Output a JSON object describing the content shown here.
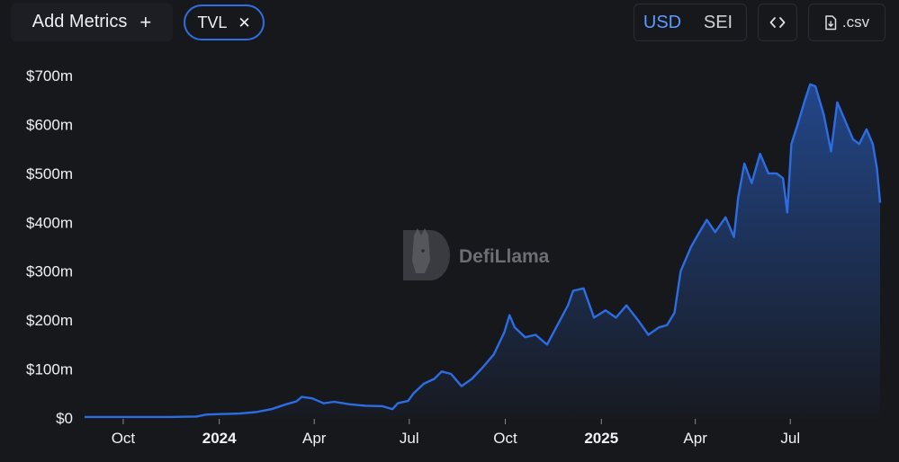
{
  "header": {
    "add_metrics_label": "Add Metrics",
    "add_icon": "plus-icon",
    "metric_chip_label": "TVL",
    "remove_icon": "close-icon",
    "currency_options": [
      "USD",
      "SEI"
    ],
    "currency_selected": "USD",
    "embed_icon": "code-brackets-icon",
    "csv_icon": "download-file-icon",
    "csv_label": ".csv"
  },
  "watermark": {
    "text": "DefiLlama",
    "icon": "llama-logo-icon"
  },
  "colors": {
    "background": "#17181c",
    "line": "#2c6de3",
    "accent": "#5b9bff"
  },
  "chart_data": {
    "type": "area",
    "series": [
      {
        "points": [
          [
            "2023-08-25",
            2
          ],
          [
            "2023-09-15",
            2
          ],
          [
            "2023-10-15",
            2
          ],
          [
            "2023-11-15",
            2
          ],
          [
            "2023-12-10",
            3
          ],
          [
            "2023-12-20",
            7
          ],
          [
            "2024-01-05",
            8
          ],
          [
            "2024-01-20",
            9
          ],
          [
            "2024-02-05",
            12
          ],
          [
            "2024-02-20",
            18
          ],
          [
            "2024-03-05",
            28
          ],
          [
            "2024-03-15",
            34
          ],
          [
            "2024-03-20",
            43
          ],
          [
            "2024-03-30",
            40
          ],
          [
            "2024-04-10",
            30
          ],
          [
            "2024-04-20",
            33
          ],
          [
            "2024-05-05",
            28
          ],
          [
            "2024-05-20",
            25
          ],
          [
            "2024-06-05",
            24
          ],
          [
            "2024-06-15",
            18
          ],
          [
            "2024-06-20",
            30
          ],
          [
            "2024-06-30",
            35
          ],
          [
            "2024-07-05",
            50
          ],
          [
            "2024-07-15",
            70
          ],
          [
            "2024-07-25",
            80
          ],
          [
            "2024-08-01",
            95
          ],
          [
            "2024-08-10",
            90
          ],
          [
            "2024-08-20",
            65
          ],
          [
            "2024-08-30",
            80
          ],
          [
            "2024-09-10",
            105
          ],
          [
            "2024-09-20",
            130
          ],
          [
            "2024-09-30",
            175
          ],
          [
            "2024-10-05",
            210
          ],
          [
            "2024-10-10",
            185
          ],
          [
            "2024-10-20",
            165
          ],
          [
            "2024-10-30",
            170
          ],
          [
            "2024-11-10",
            150
          ],
          [
            "2024-11-20",
            190
          ],
          [
            "2024-11-30",
            230
          ],
          [
            "2024-12-05",
            260
          ],
          [
            "2024-12-15",
            265
          ],
          [
            "2024-12-25",
            205
          ],
          [
            "2025-01-05",
            220
          ],
          [
            "2025-01-15",
            205
          ],
          [
            "2025-01-25",
            230
          ],
          [
            "2025-02-05",
            200
          ],
          [
            "2025-02-15",
            170
          ],
          [
            "2025-02-25",
            185
          ],
          [
            "2025-03-05",
            190
          ],
          [
            "2025-03-12",
            215
          ],
          [
            "2025-03-18",
            300
          ],
          [
            "2025-03-28",
            350
          ],
          [
            "2025-04-05",
            380
          ],
          [
            "2025-04-12",
            405
          ],
          [
            "2025-04-20",
            380
          ],
          [
            "2025-04-30",
            410
          ],
          [
            "2025-05-08",
            370
          ],
          [
            "2025-05-12",
            450
          ],
          [
            "2025-05-18",
            520
          ],
          [
            "2025-05-25",
            480
          ],
          [
            "2025-06-02",
            540
          ],
          [
            "2025-06-10",
            500
          ],
          [
            "2025-06-18",
            500
          ],
          [
            "2025-06-24",
            490
          ],
          [
            "2025-06-28",
            420
          ],
          [
            "2025-07-02",
            560
          ],
          [
            "2025-07-08",
            600
          ],
          [
            "2025-07-15",
            650
          ],
          [
            "2025-07-20",
            682
          ],
          [
            "2025-07-25",
            678
          ],
          [
            "2025-08-02",
            620
          ],
          [
            "2025-08-09",
            545
          ],
          [
            "2025-08-15",
            645
          ],
          [
            "2025-08-22",
            610
          ],
          [
            "2025-08-30",
            570
          ],
          [
            "2025-09-05",
            560
          ],
          [
            "2025-09-12",
            590
          ],
          [
            "2025-09-18",
            560
          ],
          [
            "2025-09-22",
            510
          ],
          [
            "2025-09-25",
            440
          ]
        ]
      }
    ],
    "y_ticks": [
      "$0",
      "$100m",
      "$200m",
      "$300m",
      "$400m",
      "$500m",
      "$600m",
      "$700m"
    ],
    "x_ticks": [
      {
        "label": "Oct",
        "date": "2023-10-01",
        "bold": false
      },
      {
        "label": "2024",
        "date": "2024-01-01",
        "bold": true
      },
      {
        "label": "Apr",
        "date": "2024-04-01",
        "bold": false
      },
      {
        "label": "Jul",
        "date": "2024-07-01",
        "bold": false
      },
      {
        "label": "Oct",
        "date": "2024-10-01",
        "bold": false
      },
      {
        "label": "2025",
        "date": "2025-01-01",
        "bold": true
      },
      {
        "label": "Apr",
        "date": "2025-04-01",
        "bold": false
      },
      {
        "label": "Jul",
        "date": "2025-07-01",
        "bold": false
      }
    ],
    "ylim": [
      0,
      700
    ],
    "xlim": [
      "2023-08-25",
      "2025-09-25"
    ],
    "grid": false,
    "legend": "none"
  }
}
